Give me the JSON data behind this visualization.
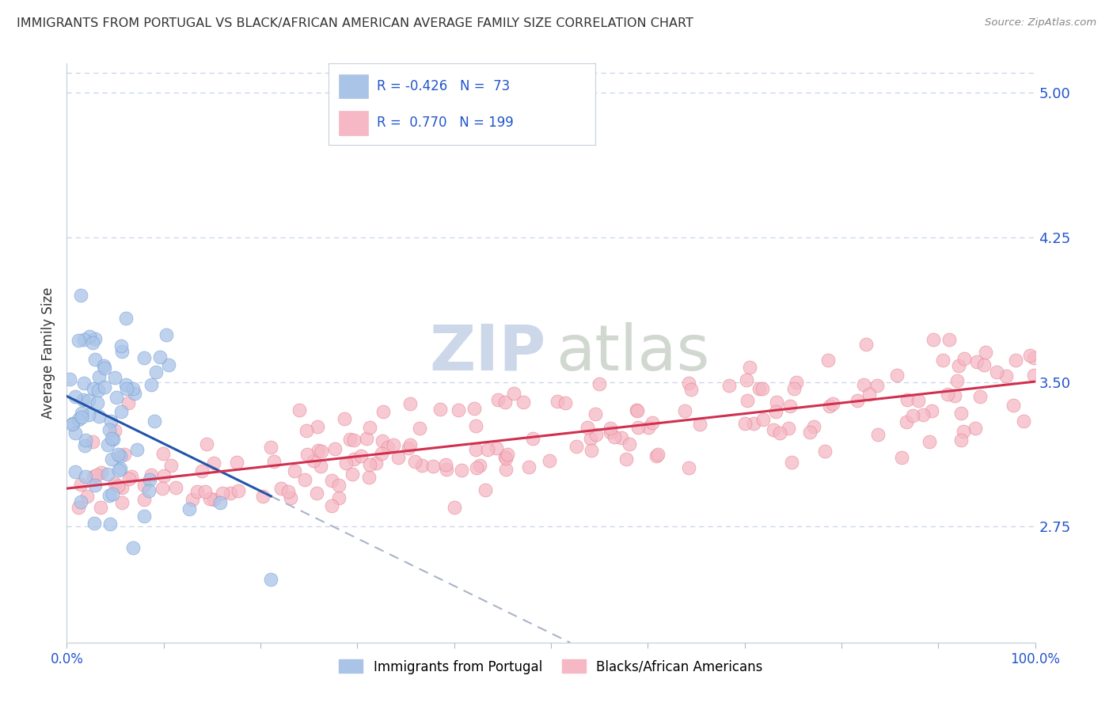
{
  "title": "IMMIGRANTS FROM PORTUGAL VS BLACK/AFRICAN AMERICAN AVERAGE FAMILY SIZE CORRELATION CHART",
  "source": "Source: ZipAtlas.com",
  "ylabel": "Average Family Size",
  "right_yticks": [
    2.75,
    3.5,
    4.25,
    5.0
  ],
  "xlim": [
    0.0,
    1.0
  ],
  "ylim": [
    2.15,
    5.15
  ],
  "blue_R": "-0.426",
  "blue_N": "73",
  "pink_R": "0.770",
  "pink_N": "199",
  "blue_color": "#aac4e8",
  "blue_line_color": "#2255aa",
  "blue_edge_color": "#6090cc",
  "pink_color": "#f5b8c4",
  "pink_line_color": "#d03050",
  "pink_edge_color": "#e07080",
  "legend_label_blue": "Immigrants from Portugal",
  "legend_label_pink": "Blacks/African Americans",
  "background_color": "#ffffff",
  "title_color": "#333333",
  "axis_label_color": "#2255cc",
  "grid_color": "#c8d4e8",
  "title_fontsize": 11.5,
  "source_fontsize": 9.5,
  "blue_seed": 42,
  "pink_seed": 77
}
